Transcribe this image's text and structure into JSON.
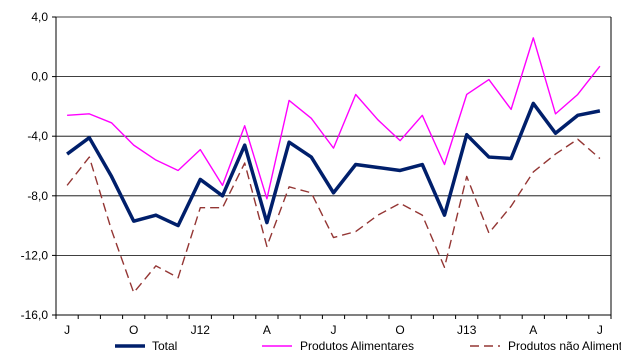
{
  "chart_data": {
    "type": "line",
    "x_tick_labels": [
      "J",
      "O",
      "J12",
      "A",
      "J",
      "O",
      "J13",
      "A",
      "J"
    ],
    "x_tick_positions": [
      0,
      3,
      6,
      9,
      12,
      15,
      18,
      21,
      24
    ],
    "ylim": [
      -16.0,
      4.0
    ],
    "yticks": [
      -16.0,
      -12.0,
      -8.0,
      -4.0,
      0.0,
      4.0
    ],
    "ytick_labels": [
      "-16,0",
      "-12,0",
      "-8,0",
      "-4,0",
      "0,0",
      "4,0"
    ],
    "grid": "horizontal",
    "legend_position": "bottom",
    "series": [
      {
        "name": "Total",
        "color": "#001f6b",
        "style": "solid-thick",
        "values": [
          -5.2,
          -4.1,
          -6.7,
          -9.7,
          -9.3,
          -10.0,
          -6.9,
          -8.0,
          -4.6,
          -9.8,
          -4.4,
          -5.4,
          -7.8,
          -5.9,
          -6.1,
          -6.3,
          -5.9,
          -9.3,
          -3.9,
          -5.4,
          -5.5,
          -1.8,
          -3.8,
          -2.6,
          -2.3
        ]
      },
      {
        "name": "Produtos Alimentares",
        "color": "#ff00ff",
        "style": "solid-thin",
        "values": [
          -2.6,
          -2.5,
          -3.1,
          -4.6,
          -5.6,
          -6.3,
          -4.9,
          -7.3,
          -3.3,
          -8.2,
          -1.6,
          -2.8,
          -4.8,
          -1.2,
          -2.9,
          -4.3,
          -2.6,
          -5.9,
          -1.2,
          -0.2,
          -2.2,
          2.6,
          -2.5,
          -1.2,
          0.7
        ]
      },
      {
        "name": "Produtos não Alimentares",
        "color": "#943634",
        "style": "dashed",
        "values": [
          -7.3,
          -5.4,
          -10.3,
          -14.5,
          -12.7,
          -13.5,
          -8.8,
          -8.8,
          -5.8,
          -11.4,
          -7.4,
          -7.8,
          -10.8,
          -10.4,
          -9.3,
          -8.5,
          -9.3,
          -12.8,
          -6.7,
          -10.5,
          -8.7,
          -6.4,
          -5.2,
          -4.2,
          -5.5
        ]
      }
    ]
  }
}
